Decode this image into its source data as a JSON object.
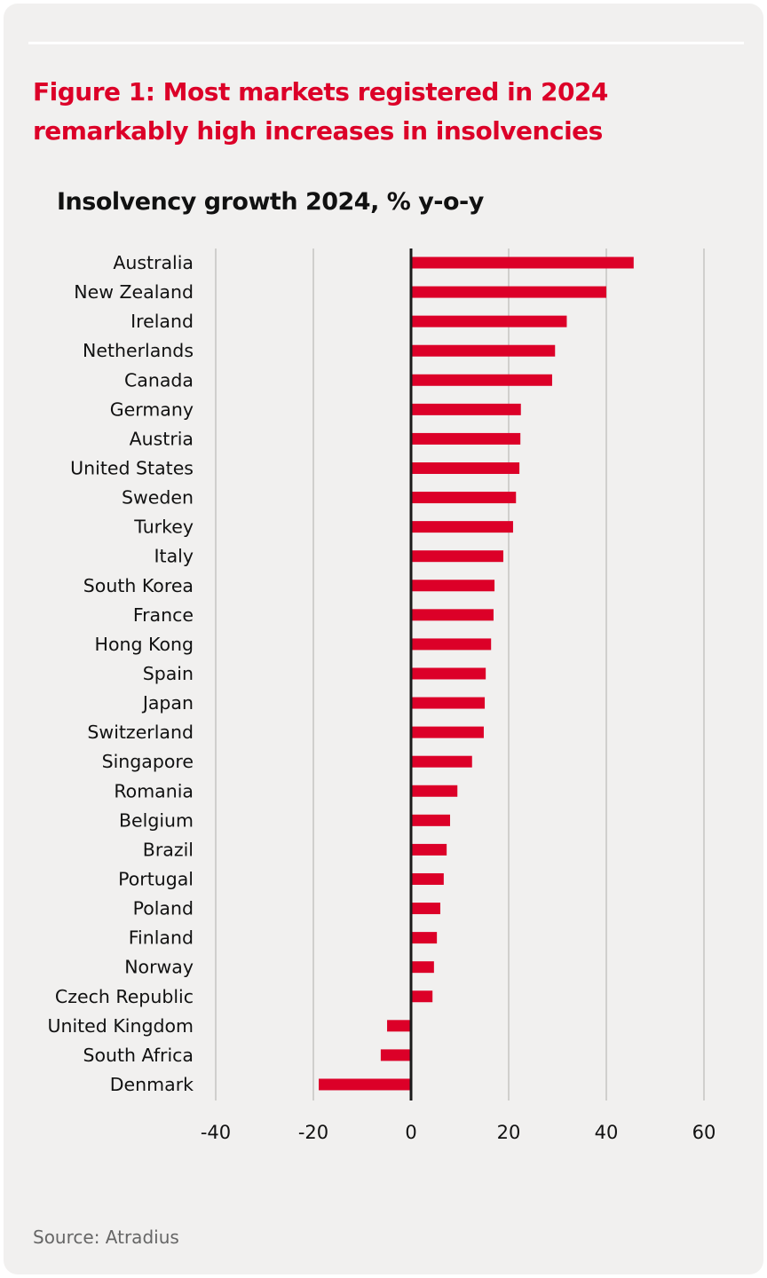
{
  "title": "Figure 1: Most markets registered in 2024 remarkably high increases in insolvencies",
  "source": "Source: Atradius",
  "colors": {
    "bar": "#dc0028",
    "title": "#dc0028",
    "background": "#f1f0ef"
  },
  "chart_data": {
    "type": "bar",
    "orientation": "horizontal",
    "title": "Insolvency growth 2024, % y-o-y",
    "xlabel": "",
    "ylabel": "",
    "xlim": [
      -40,
      60
    ],
    "xticks": [
      -40,
      -20,
      0,
      20,
      40,
      60
    ],
    "grid": true,
    "categories": [
      "Australia",
      "New Zealand",
      "Ireland",
      "Netherlands",
      "Canada",
      "Germany",
      "Austria",
      "United States",
      "Sweden",
      "Turkey",
      "Italy",
      "South Korea",
      "France",
      "Hong Kong",
      "Spain",
      "Japan",
      "Switzerland",
      "Singapore",
      "Romania",
      "Belgium",
      "Brazil",
      "Portugal",
      "Poland",
      "Finland",
      "Norway",
      "Czech Republic",
      "United Kingdom",
      "South Africa",
      "Denmark"
    ],
    "values": [
      45.6,
      40.0,
      31.9,
      29.5,
      28.9,
      22.5,
      22.4,
      22.2,
      21.5,
      20.9,
      18.9,
      17.1,
      16.9,
      16.4,
      15.3,
      15.1,
      14.9,
      12.5,
      9.5,
      8.0,
      7.3,
      6.7,
      6.0,
      5.3,
      4.7,
      4.4,
      -4.9,
      -6.2,
      -18.9
    ]
  }
}
